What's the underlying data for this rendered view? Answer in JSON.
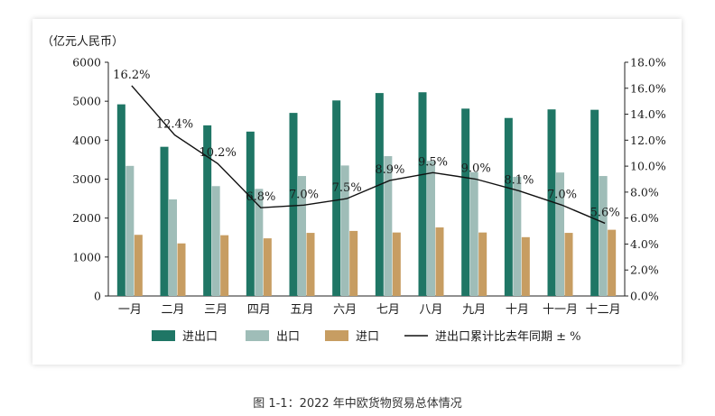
{
  "caption": "图 1-1：2022 年中欧货物贸易总体情况",
  "chart_data": {
    "type": "bar",
    "unit_label": "（亿元人民币）",
    "categories": [
      "一月",
      "二月",
      "三月",
      "四月",
      "五月",
      "六月",
      "七月",
      "八月",
      "九月",
      "十月",
      "十一月",
      "十二月"
    ],
    "ylim": [
      0,
      6000
    ],
    "yticks": [
      "0",
      "1000",
      "2000",
      "3000",
      "4000",
      "5000",
      "6000"
    ],
    "y2lim": [
      0,
      18
    ],
    "y2ticks": [
      "0.0%",
      "2.0%",
      "4.0%",
      "6.0%",
      "8.0%",
      "10.0%",
      "12.0%",
      "14.0%",
      "16.0%",
      "18.0%"
    ],
    "series": [
      {
        "name": "进出口",
        "type": "bar",
        "color": "#1f7665",
        "values": [
          4920,
          3830,
          4380,
          4220,
          4700,
          5020,
          5210,
          5230,
          4810,
          4570,
          4790,
          4780
        ]
      },
      {
        "name": "出口",
        "type": "bar",
        "color": "#9fbdb8",
        "values": [
          3340,
          2480,
          2820,
          2750,
          3080,
          3350,
          3590,
          3470,
          3180,
          3060,
          3170,
          3080
        ]
      },
      {
        "name": "进口",
        "type": "bar",
        "color": "#c79d62",
        "values": [
          1570,
          1350,
          1560,
          1480,
          1620,
          1670,
          1630,
          1760,
          1630,
          1510,
          1620,
          1700
        ]
      },
      {
        "name": "进出口累计比去年同期 ± %",
        "type": "line",
        "axis": "right",
        "color": "#111111",
        "values": [
          16.2,
          12.4,
          10.2,
          6.8,
          7.0,
          7.5,
          8.9,
          9.5,
          9.0,
          8.1,
          7.0,
          5.6
        ],
        "labels": [
          "16.2%",
          "12.4%",
          "10.2%",
          "6.8%",
          "7.0%",
          "7.5%",
          "8.9%",
          "9.5%",
          "9.0%",
          "8.1%",
          "7.0%",
          "5.6%"
        ]
      }
    ],
    "legend_position": "bottom",
    "grid": false
  }
}
